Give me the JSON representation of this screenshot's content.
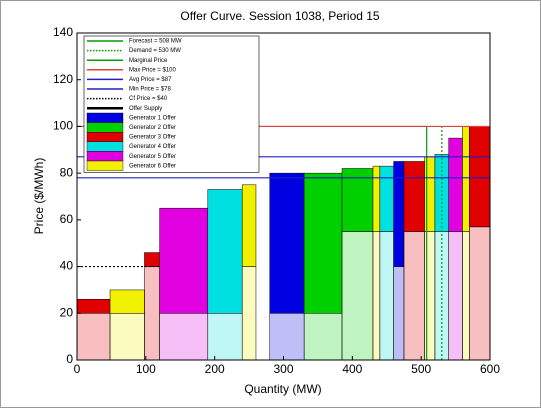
{
  "chart_data": {
    "type": "offer-blocks",
    "title": "Offer Curve. Session 1038, Period 15",
    "x_label": "Quantity (MW)",
    "y_label": "Price ($/MWh)",
    "xlim": [
      0,
      600
    ],
    "xticks": [
      0,
      100,
      200,
      300,
      400,
      500,
      600
    ],
    "ylim": [
      0,
      140
    ],
    "yticks": [
      0,
      20,
      40,
      60,
      80,
      100,
      120,
      140
    ],
    "lines": [
      {
        "name": "Forecast = 508 MW",
        "color": "#00a000",
        "orient": "v",
        "value": 508,
        "to": 100,
        "dash": false
      },
      {
        "name": "Demand = 530 MW",
        "color": "#00a000",
        "orient": "v",
        "value": 530,
        "to": 100,
        "dash": true
      },
      {
        "name": "Marginal Price",
        "color": "#00a000",
        "orient": "h",
        "value": 100,
        "to": 508,
        "dash": false
      },
      {
        "name": "Max Price = $100",
        "color": "#e04040",
        "orient": "h",
        "value": 100,
        "to": 600,
        "dash": false
      },
      {
        "name": "Avg Price = $87",
        "color": "#2020c0",
        "orient": "h",
        "value": 87,
        "to": 600,
        "dash": false
      },
      {
        "name": "Min Price = $78",
        "color": "#2020c0",
        "orient": "h",
        "value": 78,
        "to": 600,
        "dash": false
      },
      {
        "name": "Cf Price = $40",
        "color": "#000000",
        "orient": "h",
        "value": 40,
        "to": 120,
        "dash": true
      }
    ],
    "supply_name": "Offer Supply",
    "generators": [
      {
        "name": "Generator 1 Offer",
        "color": "#0000e0"
      },
      {
        "name": "Generator 2 Offer",
        "color": "#00d000"
      },
      {
        "name": "Generator 3 Offer",
        "color": "#e00000"
      },
      {
        "name": "Generator 4 Offer",
        "color": "#00e0e0"
      },
      {
        "name": "Generator 5 Offer",
        "color": "#e000e0"
      },
      {
        "name": "Generator 6 Offer",
        "color": "#f0f000"
      }
    ],
    "blocks": [
      {
        "gen": 2,
        "x0": 0,
        "x1": 48,
        "lo": 20,
        "hi": 26
      },
      {
        "gen": 5,
        "x0": 48,
        "x1": 98,
        "lo": 20,
        "hi": 30
      },
      {
        "gen": 2,
        "x0": 98,
        "x1": 120,
        "lo": 40,
        "hi": 46
      },
      {
        "gen": 4,
        "x0": 120,
        "x1": 190,
        "lo": 20,
        "hi": 65
      },
      {
        "gen": 3,
        "x0": 190,
        "x1": 240,
        "lo": 20,
        "hi": 73
      },
      {
        "gen": 5,
        "x0": 240,
        "x1": 260,
        "lo": 40,
        "hi": 75
      },
      {
        "gen": 0,
        "x0": 280,
        "x1": 330,
        "lo": 20,
        "hi": 80
      },
      {
        "gen": 1,
        "x0": 330,
        "x1": 385,
        "lo": 20,
        "hi": 80
      },
      {
        "gen": 1,
        "x0": 385,
        "x1": 430,
        "lo": 55,
        "hi": 82
      },
      {
        "gen": 5,
        "x0": 430,
        "x1": 440,
        "lo": 55,
        "hi": 83
      },
      {
        "gen": 3,
        "x0": 440,
        "x1": 460,
        "lo": 55,
        "hi": 83
      },
      {
        "gen": 0,
        "x0": 460,
        "x1": 475,
        "lo": 40,
        "hi": 85
      },
      {
        "gen": 2,
        "x0": 475,
        "x1": 505,
        "lo": 55,
        "hi": 85
      },
      {
        "gen": 5,
        "x0": 505,
        "x1": 520,
        "lo": 55,
        "hi": 87
      },
      {
        "gen": 3,
        "x0": 520,
        "x1": 540,
        "lo": 55,
        "hi": 88
      },
      {
        "gen": 4,
        "x0": 540,
        "x1": 560,
        "lo": 55,
        "hi": 95
      },
      {
        "gen": 5,
        "x0": 560,
        "x1": 570,
        "lo": 55,
        "hi": 100
      },
      {
        "gen": 2,
        "x0": 570,
        "x1": 600,
        "lo": 57,
        "hi": 100
      }
    ]
  }
}
